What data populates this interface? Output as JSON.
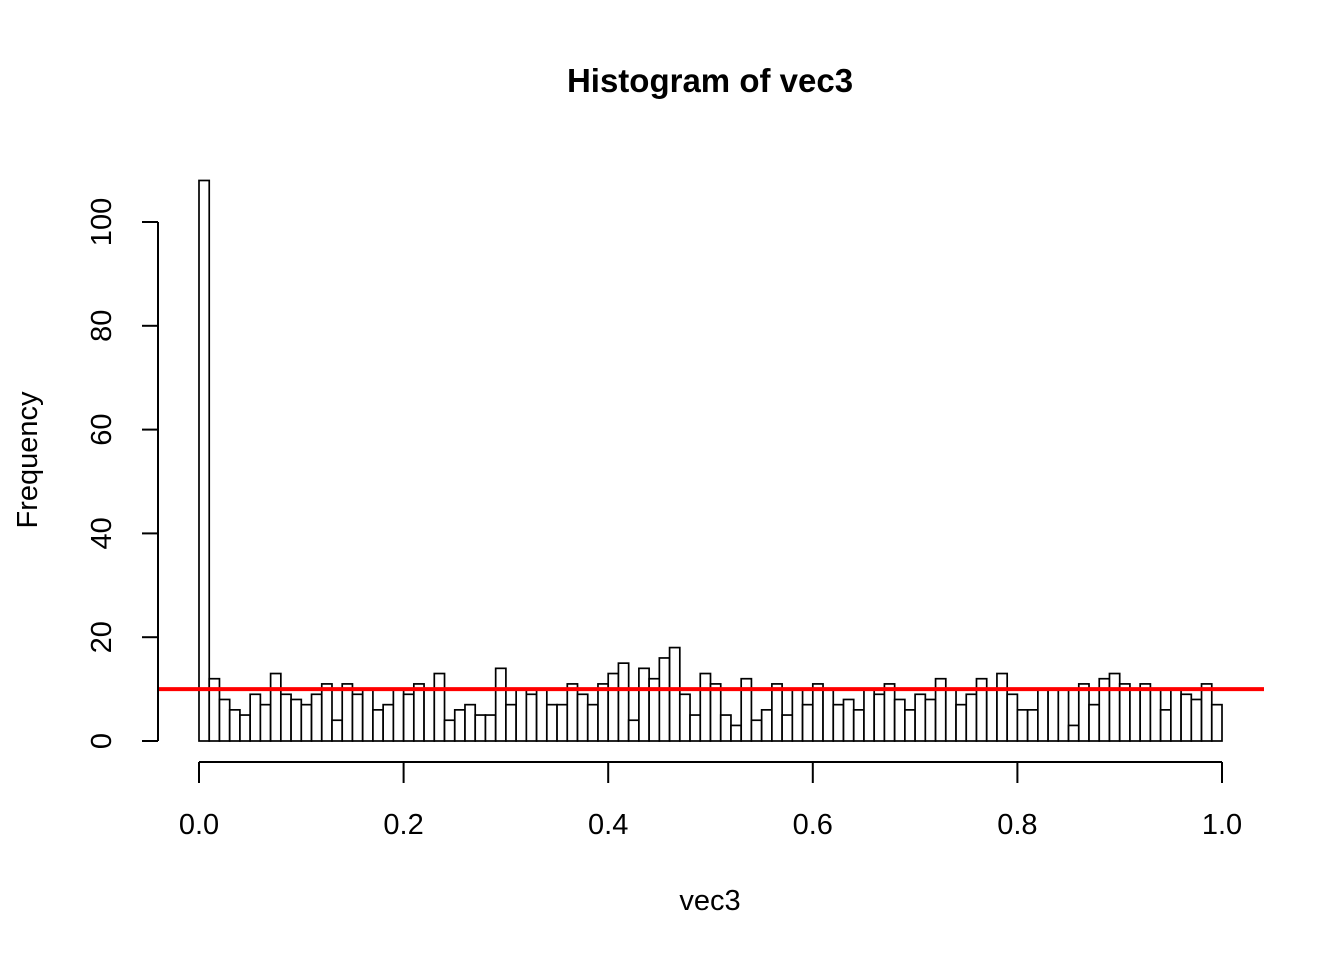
{
  "chart_data": {
    "type": "bar",
    "title": "Histogram of vec3",
    "xlabel": "vec3",
    "ylabel": "Frequency",
    "xlim": [
      0.0,
      1.0
    ],
    "ylim": [
      0,
      108
    ],
    "x_ticks": [
      "0.0",
      "0.2",
      "0.4",
      "0.6",
      "0.8",
      "1.0"
    ],
    "y_ticks": [
      "0",
      "20",
      "40",
      "60",
      "80",
      "100"
    ],
    "bin_width": 0.01,
    "bin_start": 0.0,
    "values": [
      108,
      12,
      8,
      6,
      5,
      9,
      7,
      13,
      9,
      8,
      7,
      9,
      11,
      4,
      11,
      9,
      10,
      6,
      7,
      10,
      9,
      11,
      10,
      13,
      4,
      6,
      7,
      5,
      5,
      14,
      7,
      10,
      9,
      10,
      7,
      7,
      11,
      9,
      7,
      11,
      13,
      15,
      4,
      14,
      12,
      16,
      18,
      9,
      5,
      13,
      11,
      5,
      3,
      12,
      4,
      6,
      11,
      5,
      10,
      7,
      11,
      10,
      7,
      8,
      6,
      10,
      9,
      11,
      8,
      6,
      9,
      8,
      12,
      10,
      7,
      9,
      12,
      10,
      13,
      9,
      6,
      6,
      10,
      10,
      10,
      3,
      11,
      7,
      12,
      13,
      11,
      10,
      11,
      10,
      6,
      10,
      9,
      8,
      11,
      7
    ],
    "reference_line": {
      "y": 10,
      "color": "#ff0000"
    },
    "bar_fill": "#ffffff",
    "bar_stroke": "#000000",
    "grid": false,
    "legend": "none"
  }
}
